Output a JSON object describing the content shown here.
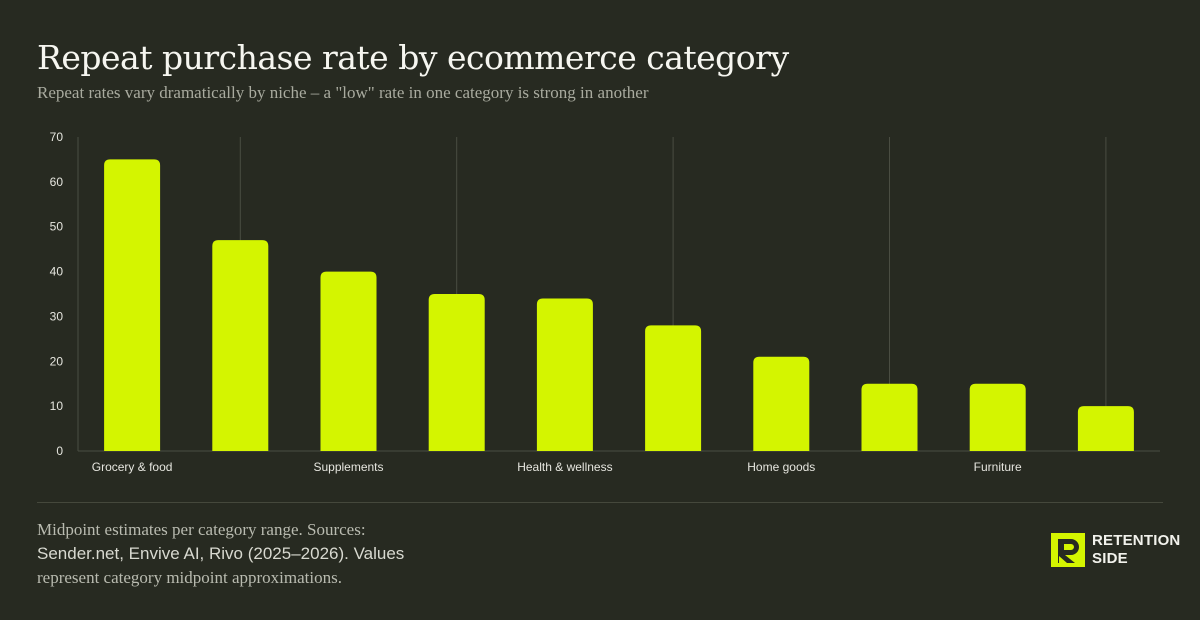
{
  "header": {
    "title": "Repeat purchase rate by ecommerce category",
    "subtitle": "Repeat rates vary dramatically by niche – a \"low\" rate in one category is strong in another"
  },
  "footer": {
    "note_line1": "Midpoint estimates per category range. Sources:",
    "note_line2": "Sender.net, Envive AI, Rivo (2025–2026). Values",
    "note_line3": "represent category midpoint approximations."
  },
  "brand": {
    "line1": "RETENTION",
    "line2": "SIDE",
    "logo_icon": "retention-side-logo-icon",
    "logo_color": "#d4f500"
  },
  "colors": {
    "bar": "#d4f500",
    "background": "#272a21",
    "grid": "#4a4d42",
    "axis_text": "#e6e6df"
  },
  "chart_data": {
    "type": "bar",
    "categories": [
      "Grocery & food",
      "",
      "Supplements",
      "",
      "Health & wellness",
      "",
      "Home goods",
      "",
      "Furniture",
      ""
    ],
    "values": [
      65,
      47,
      40,
      35,
      34,
      28,
      21,
      15,
      15,
      10
    ],
    "yticks": [
      0,
      10,
      20,
      30,
      40,
      50,
      60,
      70
    ],
    "ylim": [
      0,
      70
    ],
    "xlabel": "",
    "ylabel": "",
    "grid": "vertical",
    "legend": "none"
  }
}
